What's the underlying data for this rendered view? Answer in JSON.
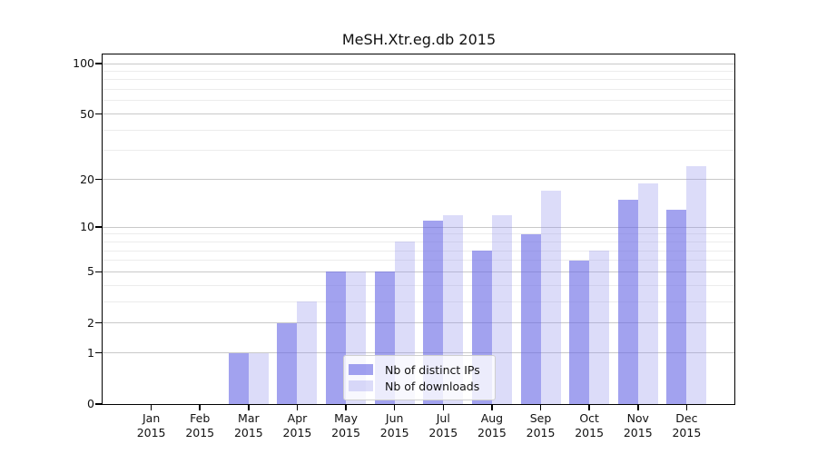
{
  "chart_data": {
    "type": "bar",
    "title": "MeSH.Xtr.eg.db 2015",
    "x_axis": {
      "months": [
        "Jan",
        "Feb",
        "Mar",
        "Apr",
        "May",
        "Jun",
        "Jul",
        "Aug",
        "Sep",
        "Oct",
        "Nov",
        "Dec"
      ],
      "year": "2015"
    },
    "series": [
      {
        "name": "Nb of distinct IPs",
        "color": "#a2a2ef",
        "color_rgba": "rgba(105,105,229,0.62)",
        "values": [
          0,
          0,
          1,
          2,
          5,
          5,
          11,
          7,
          9,
          6,
          15,
          13
        ]
      },
      {
        "name": "Nb of downloads",
        "color": "#dcdcf9",
        "color_rgba": "rgba(146,146,236,0.32)",
        "values": [
          0,
          0,
          1,
          3,
          5,
          8,
          12,
          12,
          17,
          7,
          19,
          24
        ]
      }
    ],
    "y_axis": {
      "scale": "log(1+v)",
      "ticks": [
        100,
        50,
        20,
        10,
        5,
        2,
        1,
        0
      ],
      "minor_ticks": [
        90,
        80,
        70,
        60,
        40,
        30,
        9,
        8,
        7,
        6,
        4,
        3
      ],
      "top_tick": 100
    },
    "legend": {
      "position": "lower-center"
    },
    "style": {
      "grid_major_color": "#c9c9c9",
      "grid_minor_color": "#ececec",
      "axis_color": "#000000",
      "background": "#ffffff"
    }
  }
}
